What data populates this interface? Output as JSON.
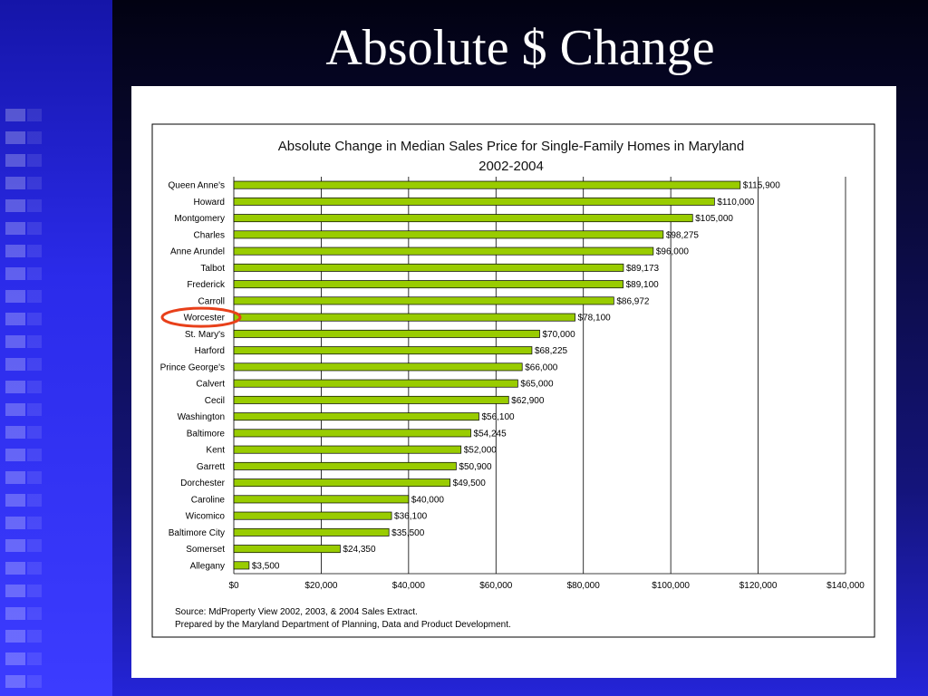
{
  "slide": {
    "title": "Absolute $ Change"
  },
  "source": {
    "line1": "Source: MdProperty View 2002, 2003, & 2004 Sales Extract.",
    "line2": "Prepared by the Maryland Department of Planning, Data and Product Development."
  },
  "highlight": {
    "category": "Worcester",
    "color": "#e8401a"
  },
  "chart_data": {
    "type": "bar",
    "orientation": "horizontal",
    "title": "Absolute Change in Median Sales Price for Single-Family Homes in Maryland",
    "subtitle": "2002-2004",
    "xlabel": "",
    "ylabel": "",
    "xlim": [
      0,
      140000
    ],
    "x_ticks": [
      0,
      20000,
      40000,
      60000,
      80000,
      100000,
      120000,
      140000
    ],
    "x_tick_labels": [
      "$0",
      "$20,000",
      "$40,000",
      "$60,000",
      "$80,000",
      "$100,000",
      "$120,000",
      "$140,000"
    ],
    "grid": "vertical",
    "bar_color": "#99cc00",
    "categories": [
      "Queen Anne's",
      "Howard",
      "Montgomery",
      "Charles",
      "Anne Arundel",
      "Talbot",
      "Frederick",
      "Carroll",
      "Worcester",
      "St. Mary's",
      "Harford",
      "Prince George's",
      "Calvert",
      "Cecil",
      "Washington",
      "Baltimore",
      "Kent",
      "Garrett",
      "Dorchester",
      "Caroline",
      "Wicomico",
      "Baltimore City",
      "Somerset",
      "Allegany"
    ],
    "values": [
      115900,
      110000,
      105000,
      98275,
      96000,
      89173,
      89100,
      86972,
      78100,
      70000,
      68225,
      66000,
      65000,
      62900,
      56100,
      54245,
      52000,
      50900,
      49500,
      40000,
      36100,
      35500,
      24350,
      3500
    ],
    "value_labels": [
      "$115,900",
      "$110,000",
      "$105,000",
      "$98,275",
      "$96,000",
      "$89,173",
      "$89,100",
      "$86,972",
      "$78,100",
      "$70,000",
      "$68,225",
      "$66,000",
      "$65,000",
      "$62,900",
      "$56,100",
      "$54,245",
      "$52,000",
      "$50,900",
      "$49,500",
      "$40,000",
      "$36,100",
      "$35,500",
      "$24,350",
      "$3,500"
    ]
  }
}
